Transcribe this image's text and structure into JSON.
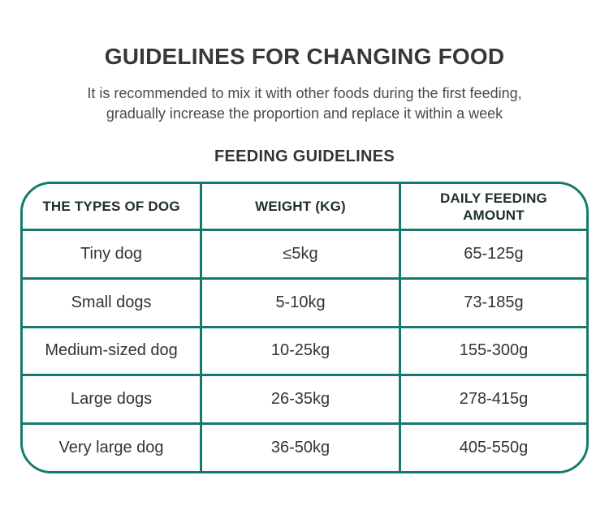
{
  "page": {
    "title": "GUIDELINES FOR CHANGING FOOD",
    "subtitle_line1": "It is recommended to mix it with other foods during the first feeding,",
    "subtitle_line2": "gradually increase the proportion and replace it within a week",
    "section_heading": "FEEDING GUIDELINES"
  },
  "colors": {
    "table_border": "#17796d",
    "title_text": "#383838",
    "subtitle_text": "#4a4a4a",
    "header_text": "#1e2e2e",
    "cell_text": "#333333",
    "background": "#ffffff"
  },
  "table": {
    "columns": [
      "THE TYPES OF DOG",
      "WEIGHT (KG)",
      "DAILY FEEDING AMOUNT"
    ],
    "rows": [
      [
        "Tiny dog",
        "≤5kg",
        "65-125g"
      ],
      [
        "Small dogs",
        "5-10kg",
        "73-185g"
      ],
      [
        "Medium-sized dog",
        "10-25kg",
        "155-300g"
      ],
      [
        "Large dogs",
        "26-35kg",
        "278-415g"
      ],
      [
        "Very large dog",
        "36-50kg",
        "405-550g"
      ]
    ]
  }
}
